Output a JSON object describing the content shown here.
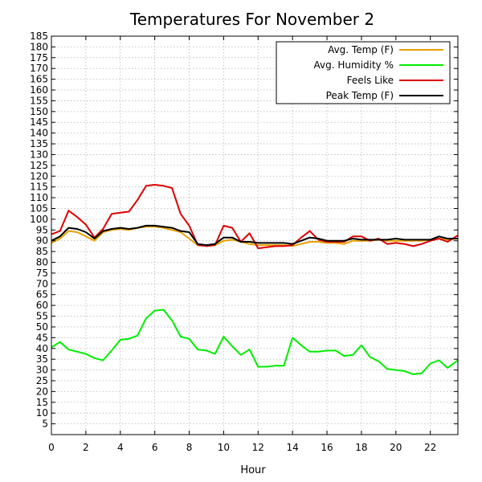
{
  "chart_data": {
    "type": "line",
    "title": "Temperatures For November 2",
    "xlabel": "Hour",
    "ylabel": "",
    "xlim": [
      0,
      23.6
    ],
    "ylim": [
      0,
      185
    ],
    "x_ticks": [
      0,
      2,
      4,
      6,
      8,
      10,
      12,
      14,
      16,
      18,
      20,
      22
    ],
    "y_ticks": [
      5,
      10,
      15,
      20,
      25,
      30,
      35,
      40,
      45,
      50,
      55,
      60,
      65,
      70,
      75,
      80,
      85,
      90,
      95,
      100,
      105,
      110,
      115,
      120,
      125,
      130,
      135,
      140,
      145,
      150,
      155,
      160,
      165,
      170,
      175,
      180,
      185
    ],
    "grid": true,
    "legend_position": "top-right",
    "series": [
      {
        "name": "Avg. Temp (F)",
        "color": "#e8a000",
        "points": [
          [
            0,
            89
          ],
          [
            0.5,
            91
          ],
          [
            1,
            94.5
          ],
          [
            1.5,
            94
          ],
          [
            2,
            92
          ],
          [
            2.5,
            90
          ],
          [
            3,
            94
          ],
          [
            3.5,
            95
          ],
          [
            4,
            95.5
          ],
          [
            4.5,
            95
          ],
          [
            5,
            96
          ],
          [
            5.5,
            96.5
          ],
          [
            6,
            96.5
          ],
          [
            6.5,
            96
          ],
          [
            7,
            95
          ],
          [
            7.5,
            94
          ],
          [
            8,
            91
          ],
          [
            8.5,
            88
          ],
          [
            9,
            88
          ],
          [
            9.5,
            88
          ],
          [
            10,
            90
          ],
          [
            10.5,
            90.5
          ],
          [
            11,
            89.5
          ],
          [
            11.5,
            88.5
          ],
          [
            12,
            88
          ],
          [
            12.5,
            88
          ],
          [
            13,
            88
          ],
          [
            13.5,
            88
          ],
          [
            14,
            87.5
          ],
          [
            14.5,
            88.5
          ],
          [
            15,
            89.5
          ],
          [
            15.5,
            89.5
          ],
          [
            16,
            89
          ],
          [
            16.5,
            89
          ],
          [
            17,
            88.5
          ],
          [
            17.5,
            90
          ],
          [
            18,
            90
          ],
          [
            18.5,
            90
          ],
          [
            19,
            90.5
          ],
          [
            19.5,
            90
          ],
          [
            20,
            90
          ],
          [
            20.5,
            90
          ],
          [
            21,
            90
          ],
          [
            21.5,
            90
          ],
          [
            22,
            90.5
          ],
          [
            22.5,
            91
          ],
          [
            23,
            90.5
          ],
          [
            23.6,
            91
          ]
        ]
      },
      {
        "name": "Avg. Humidity %",
        "color": "#00ee00",
        "points": [
          [
            0,
            40.5
          ],
          [
            0.5,
            43
          ],
          [
            1,
            39.5
          ],
          [
            1.5,
            38.5
          ],
          [
            2,
            37.5
          ],
          [
            2.5,
            35.5
          ],
          [
            3,
            34.5
          ],
          [
            3.5,
            39
          ],
          [
            4,
            44
          ],
          [
            4.5,
            44.5
          ],
          [
            5,
            46
          ],
          [
            5.5,
            54
          ],
          [
            6,
            57.5
          ],
          [
            6.5,
            58
          ],
          [
            7,
            53
          ],
          [
            7.5,
            45.5
          ],
          [
            8,
            44.5
          ],
          [
            8.5,
            39.5
          ],
          [
            9,
            39
          ],
          [
            9.5,
            37.5
          ],
          [
            10,
            45.5
          ],
          [
            10.5,
            41
          ],
          [
            11,
            37
          ],
          [
            11.5,
            39.5
          ],
          [
            12,
            31.5
          ],
          [
            12.5,
            31.5
          ],
          [
            13,
            32
          ],
          [
            13.5,
            32
          ],
          [
            14,
            45
          ],
          [
            14.5,
            41.5
          ],
          [
            15,
            38.5
          ],
          [
            15.5,
            38.5
          ],
          [
            16,
            39
          ],
          [
            16.5,
            39
          ],
          [
            17,
            36.5
          ],
          [
            17.5,
            37
          ],
          [
            18,
            41.5
          ],
          [
            18.5,
            36
          ],
          [
            19,
            34
          ],
          [
            19.5,
            30.5
          ],
          [
            20,
            30
          ],
          [
            20.5,
            29.5
          ],
          [
            21,
            28
          ],
          [
            21.5,
            28.5
          ],
          [
            22,
            33
          ],
          [
            22.5,
            34.5
          ],
          [
            23,
            31
          ],
          [
            23.6,
            34.5
          ]
        ]
      },
      {
        "name": "Feels Like",
        "color": "#dd0000",
        "points": [
          [
            0,
            93
          ],
          [
            0.5,
            94.5
          ],
          [
            1,
            104
          ],
          [
            1.5,
            101
          ],
          [
            2,
            97.5
          ],
          [
            2.5,
            91.5
          ],
          [
            3,
            95.5
          ],
          [
            3.5,
            102.5
          ],
          [
            4,
            103
          ],
          [
            4.5,
            103.5
          ],
          [
            5,
            109
          ],
          [
            5.5,
            115.5
          ],
          [
            6,
            116
          ],
          [
            6.5,
            115.5
          ],
          [
            7,
            114.5
          ],
          [
            7.5,
            102.5
          ],
          [
            8,
            97
          ],
          [
            8.5,
            88
          ],
          [
            9,
            87.5
          ],
          [
            9.5,
            88
          ],
          [
            10,
            97
          ],
          [
            10.5,
            96
          ],
          [
            11,
            89.5
          ],
          [
            11.5,
            93.5
          ],
          [
            12,
            86.5
          ],
          [
            12.5,
            87
          ],
          [
            13,
            87.5
          ],
          [
            13.5,
            87.5
          ],
          [
            14,
            88
          ],
          [
            14.5,
            91.5
          ],
          [
            15,
            94.5
          ],
          [
            15.5,
            90.5
          ],
          [
            16,
            89.5
          ],
          [
            16.5,
            89.5
          ],
          [
            17,
            89.5
          ],
          [
            17.5,
            92
          ],
          [
            18,
            92
          ],
          [
            18.5,
            90
          ],
          [
            19,
            91
          ],
          [
            19.5,
            88.5
          ],
          [
            20,
            89
          ],
          [
            20.5,
            88.5
          ],
          [
            21,
            87.5
          ],
          [
            21.5,
            88.5
          ],
          [
            22,
            90
          ],
          [
            22.5,
            91
          ],
          [
            23,
            89.5
          ],
          [
            23.6,
            92.5
          ]
        ]
      },
      {
        "name": "Peak Temp (F)",
        "color": "#000000",
        "points": [
          [
            0,
            90
          ],
          [
            0.5,
            92
          ],
          [
            1,
            96
          ],
          [
            1.5,
            95.5
          ],
          [
            2,
            94
          ],
          [
            2.5,
            91
          ],
          [
            3,
            94.5
          ],
          [
            3.5,
            95.5
          ],
          [
            4,
            96
          ],
          [
            4.5,
            95.5
          ],
          [
            5,
            96
          ],
          [
            5.5,
            97
          ],
          [
            6,
            97
          ],
          [
            6.5,
            96.5
          ],
          [
            7,
            96
          ],
          [
            7.5,
            94.5
          ],
          [
            8,
            94
          ],
          [
            8.5,
            88.5
          ],
          [
            9,
            88
          ],
          [
            9.5,
            88.5
          ],
          [
            10,
            91.5
          ],
          [
            10.5,
            91.5
          ],
          [
            11,
            89.5
          ],
          [
            11.5,
            89.5
          ],
          [
            12,
            89
          ],
          [
            12.5,
            89
          ],
          [
            13,
            89
          ],
          [
            13.5,
            89
          ],
          [
            14,
            88.5
          ],
          [
            14.5,
            90
          ],
          [
            15,
            91.5
          ],
          [
            15.5,
            91
          ],
          [
            16,
            90
          ],
          [
            16.5,
            90
          ],
          [
            17,
            90
          ],
          [
            17.5,
            91
          ],
          [
            18,
            90.5
          ],
          [
            18.5,
            90.5
          ],
          [
            19,
            90.5
          ],
          [
            19.5,
            90.5
          ],
          [
            20,
            91
          ],
          [
            20.5,
            90.5
          ],
          [
            21,
            90.5
          ],
          [
            21.5,
            90.5
          ],
          [
            22,
            90.5
          ],
          [
            22.5,
            92
          ],
          [
            23,
            91
          ],
          [
            23.6,
            91
          ]
        ]
      }
    ]
  }
}
